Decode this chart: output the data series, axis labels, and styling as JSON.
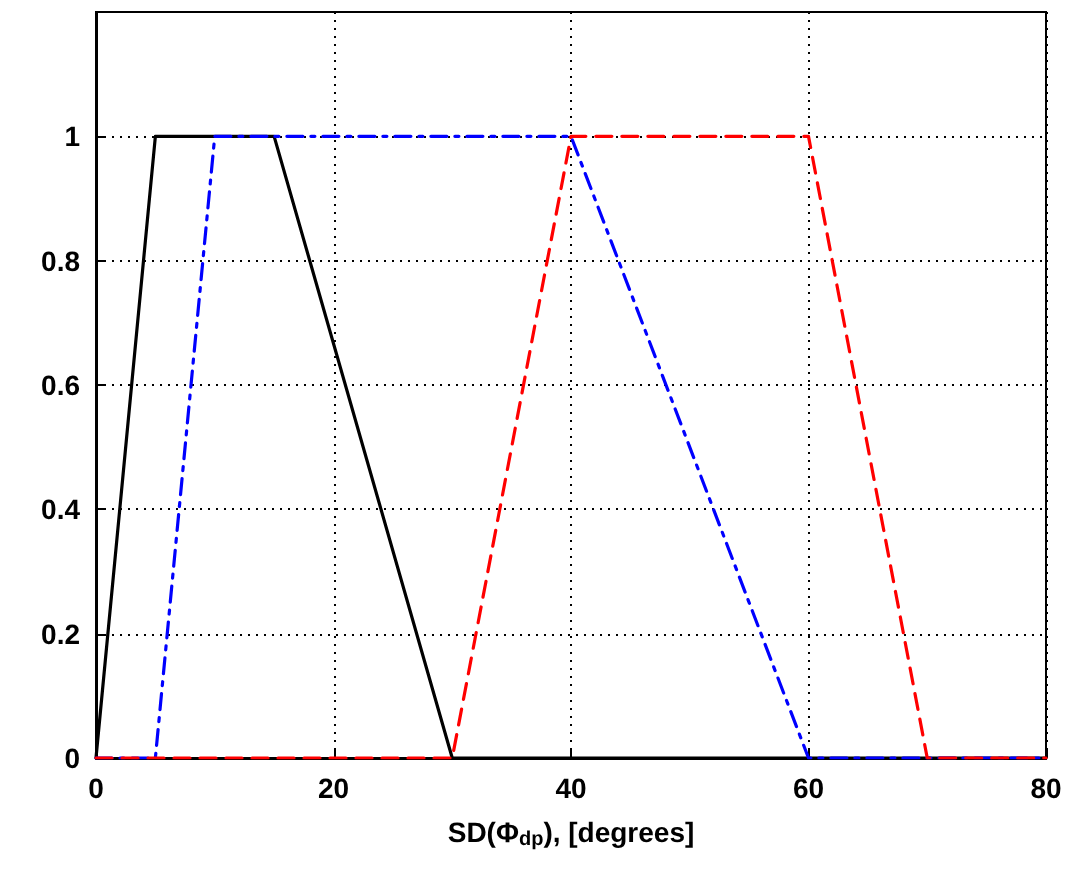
{
  "chart_data": {
    "type": "line",
    "xlabel": "SD(Φ$_{dp}$), [degrees]",
    "xlim": [
      0,
      80
    ],
    "xticks": [
      0,
      20,
      40,
      60,
      80
    ],
    "ylim": [
      0,
      1.2
    ],
    "yticks": [
      0,
      0.2,
      0.4,
      0.6,
      0.8,
      1
    ],
    "grid": true,
    "marker": "none",
    "series": [
      {
        "color": "#000000",
        "line_style": "solid",
        "x": [
          0,
          5,
          15,
          30,
          80
        ],
        "values": [
          0,
          1,
          1,
          0,
          0
        ]
      },
      {
        "color": "#0000ff",
        "line_style": "dashdot",
        "x": [
          0,
          5,
          10,
          40,
          60,
          80
        ],
        "values": [
          0,
          0,
          1,
          1,
          0,
          0
        ]
      },
      {
        "color": "#ff0000",
        "line_style": "dashed",
        "x": [
          0,
          30,
          40,
          60,
          70,
          80
        ],
        "values": [
          0,
          0,
          1,
          1,
          0,
          0
        ]
      }
    ]
  }
}
